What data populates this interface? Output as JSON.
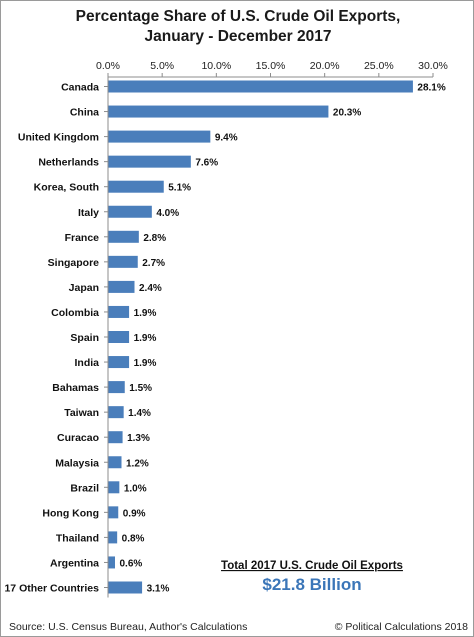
{
  "chart_data": {
    "type": "bar",
    "orientation": "horizontal",
    "title_lines": [
      "Percentage Share of U.S. Crude Oil Exports,",
      "January - December 2017"
    ],
    "categories": [
      "Canada",
      "China",
      "United Kingdom",
      "Netherlands",
      "Korea, South",
      "Italy",
      "France",
      "Singapore",
      "Japan",
      "Colombia",
      "Spain",
      "India",
      "Bahamas",
      "Taiwan",
      "Curacao",
      "Malaysia",
      "Brazil",
      "Hong Kong",
      "Thailand",
      "Argentina",
      "17 Other Countries"
    ],
    "values": [
      28.1,
      20.3,
      9.4,
      7.6,
      5.1,
      4.0,
      2.8,
      2.7,
      2.4,
      1.9,
      1.9,
      1.9,
      1.5,
      1.4,
      1.3,
      1.2,
      1.0,
      0.9,
      0.8,
      0.6,
      3.1
    ],
    "data_labels": [
      "28.1%",
      "20.3%",
      "9.4%",
      "7.6%",
      "5.1%",
      "4.0%",
      "2.8%",
      "2.7%",
      "2.4%",
      "1.9%",
      "1.9%",
      "1.9%",
      "1.5%",
      "1.4%",
      "1.3%",
      "1.2%",
      "1.0%",
      "0.9%",
      "0.8%",
      "0.6%",
      "3.1%"
    ],
    "xlim": [
      0,
      30
    ],
    "x_ticks": [
      "0.0%",
      "5.0%",
      "10.0%",
      "15.0%",
      "20.0%",
      "25.0%",
      "30.0%"
    ],
    "x_axis_position": "top",
    "grid": false,
    "legend": "none",
    "bar_color": "#4a7ebb"
  },
  "annotation": {
    "label": "Total 2017 U.S. Crude Oil Exports",
    "value": "$21.8 Billion",
    "value_color": "#3b76b8"
  },
  "footer": {
    "source": "Source: U.S. Census Bureau, Author's Calculations",
    "copyright": "© Political Calculations 2018"
  }
}
